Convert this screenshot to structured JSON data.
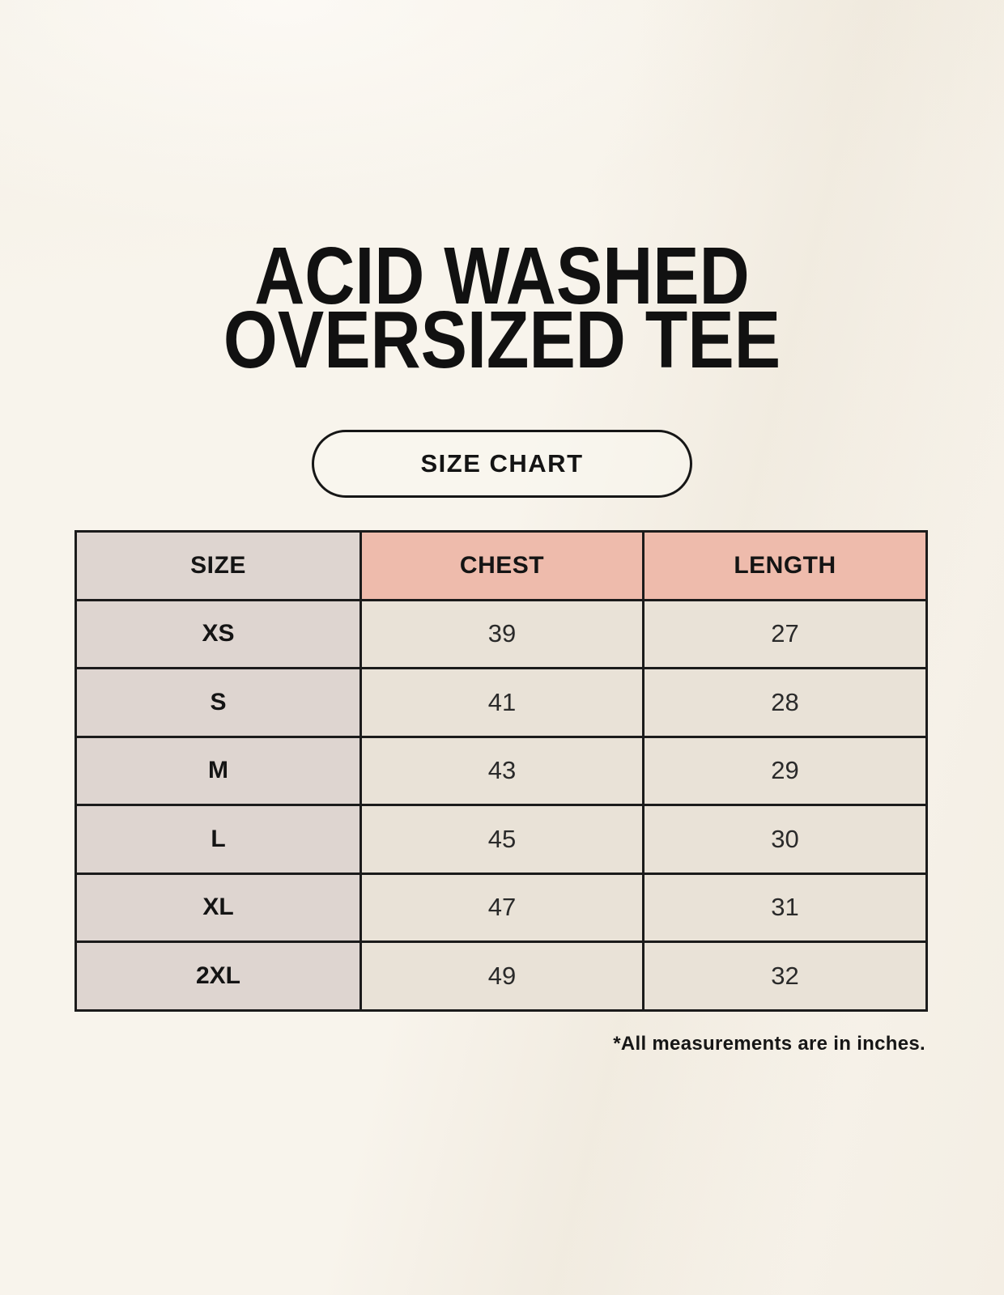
{
  "title": {
    "line1": "ACID WASHED",
    "line2": "OVERSIZED TEE"
  },
  "size_chart_button": "SIZE CHART",
  "footnote": "*All measurements are in inches.",
  "chart_data": {
    "type": "table",
    "title": "ACID WASHED OVERSIZED TEE",
    "columns": [
      "SIZE",
      "CHEST",
      "LENGTH"
    ],
    "rows": [
      [
        "XS",
        "39",
        "27"
      ],
      [
        "S",
        "41",
        "28"
      ],
      [
        "M",
        "43",
        "29"
      ],
      [
        "L",
        "45",
        "30"
      ],
      [
        "XL",
        "47",
        "31"
      ],
      [
        "2XL",
        "49",
        "32"
      ]
    ]
  },
  "colors": {
    "background": "#f8f4ec",
    "size_column_bg": "#ded5d0",
    "header_accent_bg": "#eebbac",
    "data_cell_bg": "#e9e2d7",
    "border": "#1b1b1b",
    "text": "#1d1d1d"
  }
}
